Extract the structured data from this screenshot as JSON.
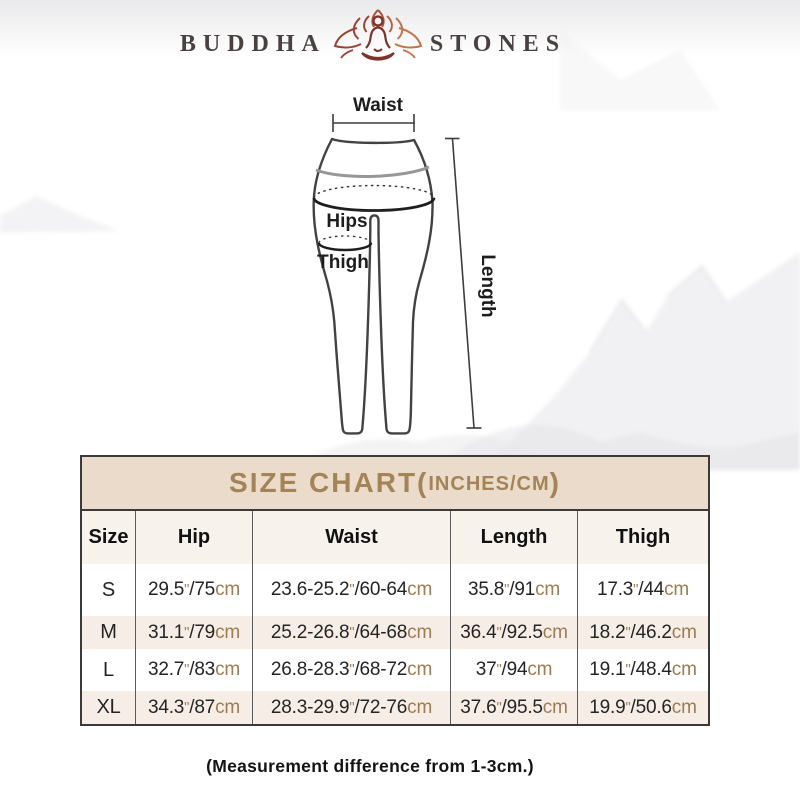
{
  "brand": {
    "name_left": "BUDDHA",
    "name_right": "STONES",
    "icon": "lotus-meditation-icon"
  },
  "diagram": {
    "labels": {
      "waist": "Waist",
      "hips": "Hips",
      "thigh": "Thigh",
      "length": "Length"
    }
  },
  "size_chart": {
    "title_prefix": "SIZE CHART(",
    "title_unit": "INCHES/CM",
    "title_suffix": ")",
    "columns": [
      "Size",
      "Hip",
      "Waist",
      "Length",
      "Thigh"
    ],
    "rows": [
      {
        "size": "S",
        "hip": "29.5\"/75cm",
        "waist": "23.6-25.2\"/60-64cm",
        "length": "35.8\"/91cm",
        "thigh": "17.3\"/44cm"
      },
      {
        "size": "M",
        "hip": "31.1\"/79cm",
        "waist": "25.2-26.8\"/64-68cm",
        "length": "36.4\"/92.5cm",
        "thigh": "18.2\"/46.2cm"
      },
      {
        "size": "L",
        "hip": "32.7\"/83cm",
        "waist": "26.8-28.3\"/68-72cm",
        "length": "37\"/94cm",
        "thigh": "19.1\"/48.4cm"
      },
      {
        "size": "XL",
        "hip": "34.3\"/87cm",
        "waist": "28.3-29.9\"/72-76cm",
        "length": "37.6\"/95.5cm",
        "thigh": "19.9\"/50.6cm"
      }
    ],
    "note": "(Measurement difference from 1-3cm.)"
  },
  "colors": {
    "title_band_bg": "#ebdbca",
    "title_text": "#a28456",
    "alt_row_bg": "#f6eee6",
    "header_row_bg": "#f8f2ec",
    "accent_brown": "#9c7c50",
    "line_dark": "#424242",
    "lotus_dark": "#7c332a",
    "lotus_light": "#c5744a"
  }
}
